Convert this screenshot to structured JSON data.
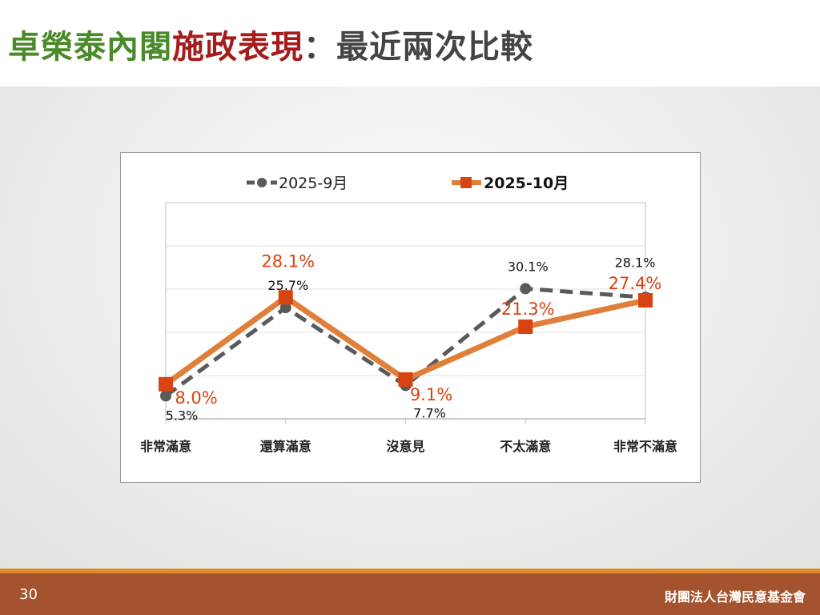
{
  "title": {
    "part1": "卓榮泰內閣",
    "part2": "施政表現",
    "part3": "：最近兩次比較"
  },
  "colors": {
    "green": "#4a8a2a",
    "red": "#a51c1c",
    "gray": "#444444",
    "series1": "#5a5a5a",
    "series2_line": "#e07f3a",
    "series2_marker": "#d9430f"
  },
  "chart_data": {
    "type": "line",
    "categories": [
      "非常滿意",
      "還算滿意",
      "沒意見",
      "不太滿意",
      "非常不滿意"
    ],
    "series": [
      {
        "name": "2025-9月",
        "values": [
          5.3,
          25.7,
          7.7,
          30.1,
          28.1
        ],
        "labels": [
          "5.3%",
          "25.7%",
          "7.7%",
          "30.1%",
          "28.1%"
        ]
      },
      {
        "name": "2025-10月",
        "values": [
          8.0,
          28.1,
          9.1,
          21.3,
          27.4
        ],
        "labels": [
          "8.0%",
          "28.1%",
          "9.1%",
          "21.3%",
          "27.4%"
        ]
      }
    ],
    "ylim": [
      0,
      50
    ],
    "grid": true,
    "legend": "top"
  },
  "footer": {
    "page": "30",
    "org": "財團法人台灣民意基金會"
  }
}
